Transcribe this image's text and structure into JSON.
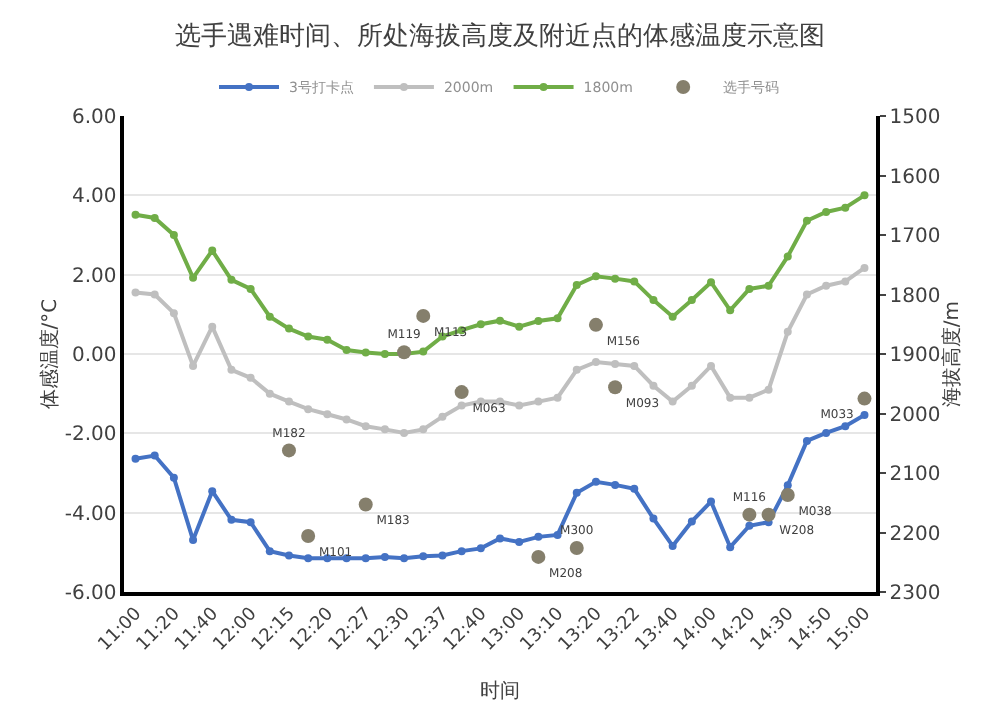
{
  "chart_data": {
    "type": "line",
    "title": "选手遇难时间、所处海拔高度及附近点的体感温度示意图",
    "xlabel": "时间",
    "ylabel": "体感温度/°C",
    "y2label": "海拔高度/m",
    "categories": [
      "11:00",
      null,
      "11:20",
      null,
      "11:40",
      null,
      "12:00",
      null,
      "12:15",
      null,
      "12:20",
      null,
      "12:27",
      null,
      "12:30",
      null,
      "12:37",
      null,
      "12:40",
      null,
      "13:00",
      null,
      "13:10",
      null,
      "13:20",
      null,
      "13:22",
      null,
      "13:40",
      null,
      "14:00",
      null,
      "14:20",
      null,
      "14:30",
      null,
      "14:50",
      null,
      "15:00"
    ],
    "series": [
      {
        "name": "3号打卡点",
        "color": "#4472c4",
        "values": [
          -2.64,
          -2.56,
          -3.12,
          -4.69,
          -3.46,
          -4.18,
          -4.24,
          -4.97,
          -5.08,
          -5.15,
          -5.15,
          -5.15,
          -5.15,
          -5.12,
          -5.15,
          -5.1,
          -5.08,
          -4.97,
          -4.9,
          -4.65,
          -4.74,
          -4.61,
          -4.56,
          -3.5,
          -3.22,
          -3.3,
          -3.4,
          -4.15,
          -4.84,
          -4.22,
          -3.72,
          -4.87,
          -4.33,
          -4.24,
          -3.31,
          -2.19,
          -1.99,
          -1.82,
          -1.54
        ]
      },
      {
        "name": "2000m",
        "color": "#bfbfbf",
        "values": [
          1.55,
          1.5,
          1.03,
          -0.3,
          0.69,
          -0.4,
          -0.6,
          -1.0,
          -1.2,
          -1.39,
          -1.52,
          -1.65,
          -1.82,
          -1.9,
          -1.99,
          -1.9,
          -1.58,
          -1.3,
          -1.2,
          -1.2,
          -1.3,
          -1.2,
          -1.1,
          -0.4,
          -0.2,
          -0.25,
          -0.3,
          -0.8,
          -1.2,
          -0.8,
          -0.3,
          -1.1,
          -1.1,
          -0.9,
          0.56,
          1.5,
          1.72,
          1.83,
          2.17
        ]
      },
      {
        "name": "1800m",
        "color": "#70ad47",
        "values": [
          3.51,
          3.43,
          3.0,
          1.92,
          2.61,
          1.87,
          1.64,
          0.94,
          0.64,
          0.44,
          0.36,
          0.1,
          0.04,
          0.0,
          0.0,
          0.06,
          0.44,
          0.6,
          0.75,
          0.84,
          0.69,
          0.83,
          0.9,
          1.74,
          1.96,
          1.9,
          1.83,
          1.36,
          0.94,
          1.36,
          1.81,
          1.1,
          1.64,
          1.72,
          2.46,
          3.36,
          3.58,
          3.69,
          4.0
        ]
      },
      {
        "name": "选手号码",
        "type": "scatter",
        "axis": "y2",
        "color": "#857f6c",
        "values": [
          null,
          null,
          null,
          null,
          null,
          null,
          null,
          null,
          2062,
          2206,
          null,
          null,
          2153,
          null,
          1897,
          1836,
          null,
          1964,
          null,
          null,
          null,
          2241,
          null,
          2226,
          1851,
          1956,
          null,
          null,
          null,
          null,
          null,
          null,
          2170,
          2170,
          2137,
          null,
          null,
          null,
          1975
        ],
        "value_labels": [
          null,
          null,
          null,
          null,
          null,
          null,
          null,
          null,
          "M182",
          "M101",
          null,
          null,
          "M183",
          null,
          "M119",
          "M113",
          null,
          "M063",
          null,
          null,
          null,
          "M208",
          null,
          "M300",
          "M156",
          "M093",
          null,
          null,
          null,
          null,
          null,
          null,
          "M116",
          "W208",
          "M038",
          null,
          null,
          null,
          "M033"
        ]
      }
    ],
    "ylim": [
      -6,
      6
    ],
    "yticks": [
      {
        "value": 6,
        "label": "6.00"
      },
      {
        "value": 4,
        "label": "4.00"
      },
      {
        "value": 2,
        "label": "2.00"
      },
      {
        "value": 0,
        "label": "0.00"
      },
      {
        "value": -2,
        "label": "-2.00"
      },
      {
        "value": -4,
        "label": "-4.00"
      },
      {
        "value": -6,
        "label": "-6.00"
      }
    ],
    "y2lim": [
      2300,
      1500
    ],
    "y2ticks": [
      1500,
      1600,
      1700,
      1800,
      1900,
      2000,
      2100,
      2200,
      2300
    ],
    "grid": "y",
    "legend": "top",
    "marker": "circle",
    "line_style": "solid"
  }
}
